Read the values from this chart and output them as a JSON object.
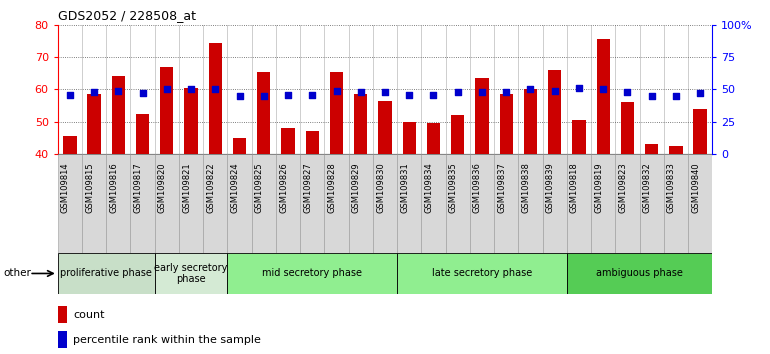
{
  "title": "GDS2052 / 228508_at",
  "samples": [
    "GSM109814",
    "GSM109815",
    "GSM109816",
    "GSM109817",
    "GSM109820",
    "GSM109821",
    "GSM109822",
    "GSM109824",
    "GSM109825",
    "GSM109826",
    "GSM109827",
    "GSM109828",
    "GSM109829",
    "GSM109830",
    "GSM109831",
    "GSM109834",
    "GSM109835",
    "GSM109836",
    "GSM109837",
    "GSM109838",
    "GSM109839",
    "GSM109818",
    "GSM109819",
    "GSM109823",
    "GSM109832",
    "GSM109833",
    "GSM109840"
  ],
  "bar_values": [
    45.5,
    58.5,
    64.0,
    52.5,
    67.0,
    60.5,
    74.5,
    45.0,
    65.5,
    48.0,
    47.0,
    65.5,
    58.5,
    56.5,
    50.0,
    49.5,
    52.0,
    63.5,
    58.5,
    60.0,
    66.0,
    50.5,
    75.5,
    56.0,
    43.0,
    42.5,
    54.0
  ],
  "dot_values_pct": [
    46,
    48,
    49,
    47,
    50,
    50,
    50,
    45,
    45,
    46,
    46,
    49,
    48,
    48,
    46,
    46,
    48,
    48,
    48,
    50,
    49,
    51,
    50,
    48,
    45,
    45,
    47
  ],
  "phases": [
    {
      "label": "proliferative phase",
      "start": 0,
      "end": 4,
      "color": "#c8dfc8"
    },
    {
      "label": "early secretory\nphase",
      "start": 4,
      "end": 7,
      "color": "#d4ead4"
    },
    {
      "label": "mid secretory phase",
      "start": 7,
      "end": 14,
      "color": "#90ee90"
    },
    {
      "label": "late secretory phase",
      "start": 14,
      "end": 21,
      "color": "#90ee90"
    },
    {
      "label": "ambiguous phase",
      "start": 21,
      "end": 27,
      "color": "#55cc55"
    }
  ],
  "ylim_left": [
    40,
    80
  ],
  "ylim_right": [
    0,
    100
  ],
  "yticks_left": [
    40,
    50,
    60,
    70,
    80
  ],
  "yticks_right": [
    0,
    25,
    50,
    75,
    100
  ],
  "bar_color": "#cc0000",
  "dot_color": "#0000cc",
  "grid_color": "#555555",
  "col_bg_color": "#d8d8d8"
}
